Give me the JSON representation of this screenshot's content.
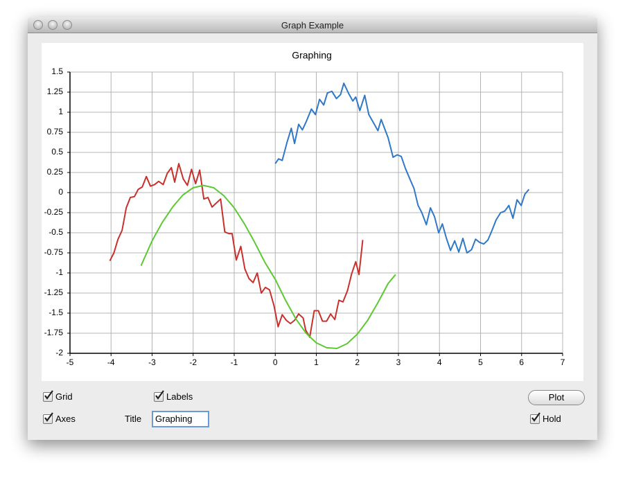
{
  "window": {
    "title": "Graph Example"
  },
  "chart_data": {
    "type": "line",
    "title": "Graphing",
    "xlim": [
      -5,
      7
    ],
    "xticks": [
      -5,
      -4,
      -3,
      -2,
      -1,
      0,
      1,
      2,
      3,
      4,
      5,
      6,
      7
    ],
    "ylim": [
      -2,
      1.5
    ],
    "yticks": [
      -2,
      -1.75,
      -1.5,
      -1.25,
      -1,
      -0.75,
      -0.5,
      -0.25,
      0,
      0.25,
      0.5,
      0.75,
      1,
      1.25,
      1.5
    ],
    "grid": true,
    "axes": true,
    "series": [
      {
        "color": "#2f78c8",
        "x": [
          0,
          0.08,
          0.17,
          0.29,
          0.39,
          0.47,
          0.57,
          0.66,
          0.76,
          0.88,
          0.98,
          1.08,
          1.18,
          1.27,
          1.38,
          1.49,
          1.59,
          1.67,
          1.79,
          1.89,
          1.96,
          2.06,
          2.18,
          2.28,
          2.38,
          2.5,
          2.58,
          2.67,
          2.75,
          2.87,
          2.97,
          3.07,
          3.17,
          3.27,
          3.38,
          3.48,
          3.57,
          3.68,
          3.78,
          3.88,
          3.98,
          4.07,
          4.17,
          4.27,
          4.37,
          4.47,
          4.57,
          4.67,
          4.78,
          4.88,
          4.98,
          5.08,
          5.18,
          5.28,
          5.38,
          5.49,
          5.59,
          5.69,
          5.79,
          5.89,
          5.99,
          6.08,
          6.18
        ],
        "values": [
          0.36,
          0.42,
          0.4,
          0.63,
          0.8,
          0.61,
          0.85,
          0.78,
          0.89,
          1.04,
          0.97,
          1.16,
          1.09,
          1.24,
          1.26,
          1.17,
          1.22,
          1.36,
          1.23,
          1.14,
          1.19,
          1.02,
          1.21,
          0.97,
          0.88,
          0.77,
          0.91,
          0.79,
          0.68,
          0.44,
          0.47,
          0.45,
          0.3,
          0.18,
          0.05,
          -0.16,
          -0.25,
          -0.4,
          -0.19,
          -0.3,
          -0.5,
          -0.39,
          -0.57,
          -0.72,
          -0.6,
          -0.74,
          -0.57,
          -0.75,
          -0.71,
          -0.58,
          -0.62,
          -0.64,
          -0.59,
          -0.47,
          -0.34,
          -0.25,
          -0.23,
          -0.16,
          -0.32,
          -0.09,
          -0.16,
          -0.02,
          0.04
        ]
      },
      {
        "color": "#c8302c",
        "x": [
          -4.03,
          -3.93,
          -3.83,
          -3.73,
          -3.63,
          -3.53,
          -3.43,
          -3.34,
          -3.24,
          -3.14,
          -3.04,
          -2.94,
          -2.84,
          -2.73,
          -2.63,
          -2.53,
          -2.45,
          -2.35,
          -2.24,
          -2.14,
          -2.04,
          -1.94,
          -1.84,
          -1.74,
          -1.64,
          -1.54,
          -1.33,
          -1.23,
          -1.13,
          -1.05,
          -0.95,
          -0.84,
          -0.74,
          -0.64,
          -0.54,
          -0.44,
          -0.34,
          -0.24,
          -0.14,
          -0.03,
          0.07,
          0.17,
          0.27,
          0.37,
          0.47,
          0.57,
          0.68,
          0.74,
          0.84,
          0.95,
          1.05,
          1.15,
          1.25,
          1.35,
          1.45,
          1.55,
          1.65,
          1.76,
          1.86,
          1.96,
          2.04,
          2.13
        ],
        "values": [
          -0.85,
          -0.75,
          -0.58,
          -0.47,
          -0.19,
          -0.06,
          -0.05,
          0.04,
          0.07,
          0.2,
          0.08,
          0.1,
          0.14,
          0.1,
          0.24,
          0.31,
          0.13,
          0.36,
          0.17,
          0.09,
          0.29,
          0.11,
          0.28,
          -0.08,
          -0.06,
          -0.18,
          -0.08,
          -0.49,
          -0.51,
          -0.51,
          -0.84,
          -0.67,
          -0.95,
          -1.07,
          -1.12,
          -1,
          -1.25,
          -1.18,
          -1.21,
          -1.41,
          -1.67,
          -1.52,
          -1.59,
          -1.63,
          -1.59,
          -1.51,
          -1.56,
          -1.71,
          -1.8,
          -1.47,
          -1.47,
          -1.6,
          -1.6,
          -1.51,
          -1.58,
          -1.34,
          -1.36,
          -1.22,
          -1.01,
          -0.86,
          -1.02,
          -0.59
        ]
      },
      {
        "color": "#5cc832",
        "x": [
          -3.27,
          -3,
          -2.75,
          -2.5,
          -2.25,
          -2,
          -1.75,
          -1.5,
          -1.25,
          -1,
          -0.75,
          -0.5,
          -0.25,
          0,
          0.25,
          0.5,
          0.75,
          1,
          1.25,
          1.5,
          1.75,
          2,
          2.25,
          2.5,
          2.75,
          2.93
        ],
        "values": [
          -0.91,
          -0.6,
          -0.37,
          -0.18,
          -0.03,
          0.06,
          0.09,
          0.06,
          -0.04,
          -0.19,
          -0.39,
          -0.62,
          -0.87,
          -1.08,
          -1.34,
          -1.57,
          -1.75,
          -1.87,
          -1.93,
          -1.94,
          -1.88,
          -1.76,
          -1.59,
          -1.37,
          -1.13,
          -1.02
        ]
      }
    ]
  },
  "controls": {
    "grid": {
      "label": "Grid",
      "checked": true
    },
    "labels": {
      "label": "Labels",
      "checked": true
    },
    "axes": {
      "label": "Axes",
      "checked": true
    },
    "hold": {
      "label": "Hold",
      "checked": true
    },
    "title_label": "Title",
    "title_field": "Graphing",
    "plot_button": "Plot"
  }
}
